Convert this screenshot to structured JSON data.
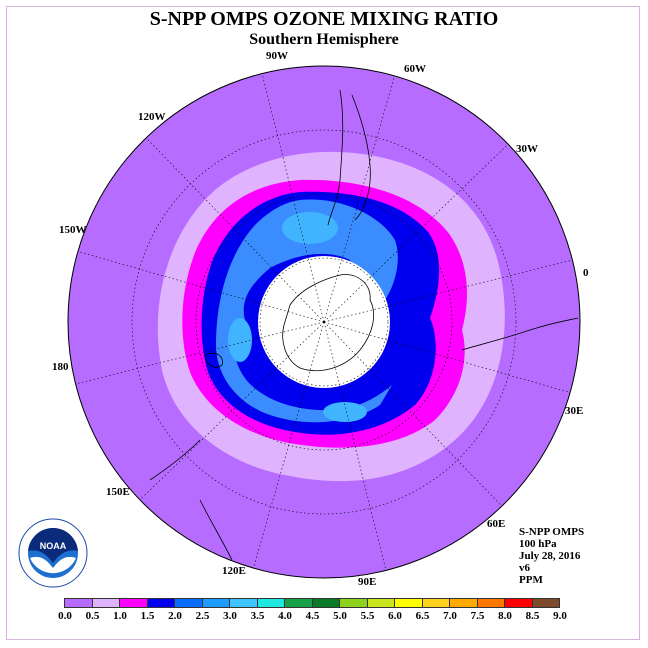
{
  "title": "S-NPP OMPS OZONE MIXING RATIO",
  "subtitle": "Southern Hemisphere",
  "longitude_labels": [
    "90W",
    "60W",
    "30W",
    "0",
    "30E",
    "60E",
    "90E",
    "120E",
    "150E",
    "180",
    "150W",
    "120W"
  ],
  "info": {
    "instrument": "S-NPP OMPS",
    "level": "100 hPa",
    "date": "July 28, 2016",
    "version": "v6",
    "units": "PPM"
  },
  "colorbar": {
    "ticks": [
      "0.0",
      "0.5",
      "1.0",
      "1.5",
      "2.0",
      "2.5",
      "3.0",
      "3.5",
      "4.0",
      "4.5",
      "5.0",
      "5.5",
      "6.0",
      "6.5",
      "7.0",
      "7.5",
      "8.0",
      "8.5",
      "9.0"
    ],
    "colors": [
      "#b66dff",
      "#e0b3ff",
      "#ff00ff",
      "#0000ee",
      "#0a6cff",
      "#1e9bff",
      "#40c4ff",
      "#1ee8e0",
      "#18a048",
      "#0a7a2a",
      "#8ed21e",
      "#c8e61e",
      "#ffff00",
      "#ffd21e",
      "#ffaa00",
      "#ff7800",
      "#ff0000",
      "#7d4a2c"
    ]
  },
  "map_levels": {
    "outer": "#b66dff",
    "band_light": "#e0b3ff",
    "band_magenta": "#ff00ff",
    "band_blue": "#0000ee",
    "band_azure": "#3a8cff",
    "band_sky": "#40b4ff",
    "no_data": "#ffffff"
  },
  "logo_text": "NOAA"
}
